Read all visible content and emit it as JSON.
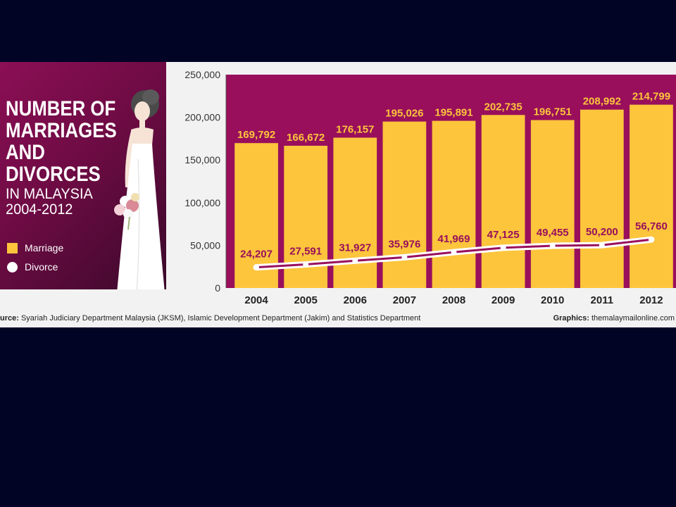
{
  "title_lines": [
    "NUMBER OF",
    "MARRIAGES",
    "AND",
    "DIVORCES"
  ],
  "subtitle_lines": [
    "IN MALAYSIA",
    "2004-2012"
  ],
  "legend": {
    "marriage_label": "Marriage",
    "divorce_label": "Divorce"
  },
  "source": {
    "prefix": "urce:",
    "text": " Syariah Judiciary Department Malaysia (JKSM), Islamic Development Department (Jakim) and Statistics Department"
  },
  "credit": {
    "prefix": "Graphics:",
    "text": " themalaymailonline.com"
  },
  "colors": {
    "marriage_bar": "#fcc53c",
    "plot_background": "#990f5c",
    "divorce_line": "#ffffff",
    "label_text": "#fcc53c",
    "page_background": "#020426"
  },
  "chart_data": {
    "type": "bar",
    "categories": [
      "2004",
      "2005",
      "2006",
      "2007",
      "2008",
      "2009",
      "2010",
      "2011",
      "2012"
    ],
    "series": [
      {
        "name": "Marriage",
        "type": "bar",
        "values": [
          169792,
          166672,
          176157,
          195026,
          195891,
          202735,
          196751,
          208992,
          214799
        ],
        "labels": [
          "169,792",
          "166,672",
          "176,157",
          "195,026",
          "195,891",
          "202,735",
          "196,751",
          "208,992",
          "214,799"
        ]
      },
      {
        "name": "Divorce",
        "type": "line",
        "values": [
          24207,
          27591,
          31927,
          35976,
          41969,
          47125,
          49455,
          50200,
          56760
        ],
        "labels": [
          "24,207",
          "27,591",
          "31,927",
          "35,976",
          "41,969",
          "47,125",
          "49,455",
          "50,200",
          "56,760"
        ]
      }
    ],
    "y_ticks": [
      0,
      50000,
      100000,
      150000,
      200000,
      250000
    ],
    "y_tick_labels": [
      "0",
      "50,000",
      "100,000",
      "150,000",
      "200,000",
      "250,000"
    ],
    "ylim": [
      0,
      250000
    ],
    "legend_position": "left"
  }
}
